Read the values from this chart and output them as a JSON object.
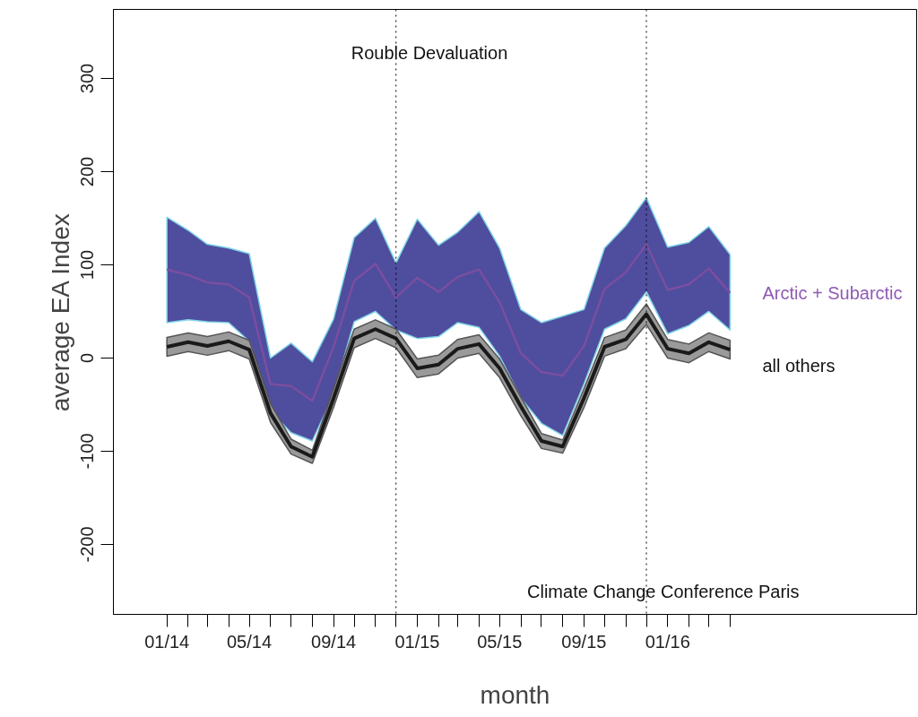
{
  "chart_data": {
    "type": "line",
    "xlabel": "month",
    "ylabel": "average EA Index",
    "x": [
      "2014-01",
      "2014-02",
      "2014-03",
      "2014-04",
      "2014-05",
      "2014-06",
      "2014-07",
      "2014-08",
      "2014-09",
      "2014-10",
      "2014-11",
      "2014-12",
      "2015-01",
      "2015-02",
      "2015-03",
      "2015-04",
      "2015-05",
      "2015-06",
      "2015-07",
      "2015-08",
      "2015-09",
      "2015-10",
      "2015-11",
      "2015-12",
      "2016-01",
      "2016-02",
      "2016-03",
      "2016-04"
    ],
    "xlim": [
      "2013-10-15",
      "2016-12-29"
    ],
    "ylim": [
      -275,
      374
    ],
    "xticks": [
      {
        "value": "2014-01",
        "label": "01/14"
      },
      {
        "value": "2014-02",
        "label": null
      },
      {
        "value": "2014-03",
        "label": null
      },
      {
        "value": "2014-04",
        "label": null
      },
      {
        "value": "2014-05",
        "label": "05/14"
      },
      {
        "value": "2014-06",
        "label": null
      },
      {
        "value": "2014-07",
        "label": null
      },
      {
        "value": "2014-08",
        "label": null
      },
      {
        "value": "2014-09",
        "label": "09/14"
      },
      {
        "value": "2014-10",
        "label": null
      },
      {
        "value": "2014-11",
        "label": null
      },
      {
        "value": "2014-12",
        "label": null
      },
      {
        "value": "2015-01",
        "label": "01/15"
      },
      {
        "value": "2015-02",
        "label": null
      },
      {
        "value": "2015-03",
        "label": null
      },
      {
        "value": "2015-04",
        "label": null
      },
      {
        "value": "2015-05",
        "label": "05/15"
      },
      {
        "value": "2015-06",
        "label": null
      },
      {
        "value": "2015-07",
        "label": null
      },
      {
        "value": "2015-08",
        "label": null
      },
      {
        "value": "2015-09",
        "label": "09/15"
      },
      {
        "value": "2015-10",
        "label": null
      },
      {
        "value": "2015-11",
        "label": null
      },
      {
        "value": "2015-12",
        "label": null
      },
      {
        "value": "2016-01",
        "label": "01/16"
      },
      {
        "value": "2016-02",
        "label": null
      },
      {
        "value": "2016-03",
        "label": null
      },
      {
        "value": "2016-04",
        "label": null
      }
    ],
    "yticks": [
      -200,
      -100,
      0,
      100,
      200,
      300
    ],
    "grid": false,
    "marker": "none",
    "line_style": "solid",
    "series": [
      {
        "name": "Arctic + Subarctic",
        "color": "#7a4ea0",
        "values": [
          95,
          89,
          81,
          79,
          65,
          -28,
          -30,
          -46,
          12,
          83,
          101,
          65,
          86,
          71,
          87,
          95,
          60,
          5,
          -15,
          -19,
          13,
          74,
          92,
          122,
          73,
          79,
          96,
          70
        ],
        "lower": [
          38,
          41,
          39,
          38,
          18,
          -57,
          -80,
          -89,
          -39,
          39,
          50,
          30,
          21,
          23,
          38,
          33,
          2,
          -43,
          -70,
          -83,
          -28,
          31,
          42,
          71,
          26,
          35,
          50,
          30
        ],
        "upper": [
          151,
          137,
          122,
          118,
          112,
          0,
          16,
          -4,
          42,
          129,
          150,
          102,
          149,
          121,
          135,
          157,
          118,
          52,
          38,
          45,
          52,
          118,
          142,
          172,
          119,
          124,
          141,
          111
        ]
      },
      {
        "name": "all others",
        "color": "#1a1a1a",
        "values": [
          12,
          17,
          13,
          18,
          9,
          -59,
          -95,
          -106,
          -43,
          21,
          31,
          21,
          -11,
          -7,
          10,
          15,
          -11,
          -52,
          -89,
          -95,
          -43,
          12,
          20,
          47,
          10,
          5,
          17,
          9
        ],
        "lower": [
          2,
          7,
          3,
          8,
          -1,
          -69,
          -103,
          -113,
          -53,
          11,
          21,
          11,
          -21,
          -17,
          0,
          5,
          -21,
          -62,
          -97,
          -102,
          -53,
          2,
          10,
          36,
          0,
          -5,
          7,
          -1
        ],
        "upper": [
          22,
          27,
          23,
          28,
          19,
          -49,
          -87,
          -99,
          -33,
          31,
          41,
          31,
          -1,
          3,
          20,
          25,
          -1,
          -42,
          -81,
          -88,
          -33,
          22,
          30,
          58,
          20,
          15,
          27,
          19
        ]
      }
    ],
    "ref_lines": [
      {
        "axis": "x",
        "value": "2014-12",
        "label": "Rouble Devaluation",
        "color": "#000000",
        "line_style": "dotted"
      },
      {
        "axis": "x",
        "value": "2015-12",
        "label": "Climate Change Conference Paris",
        "color": "#000000",
        "line_style": "dotted"
      }
    ]
  }
}
